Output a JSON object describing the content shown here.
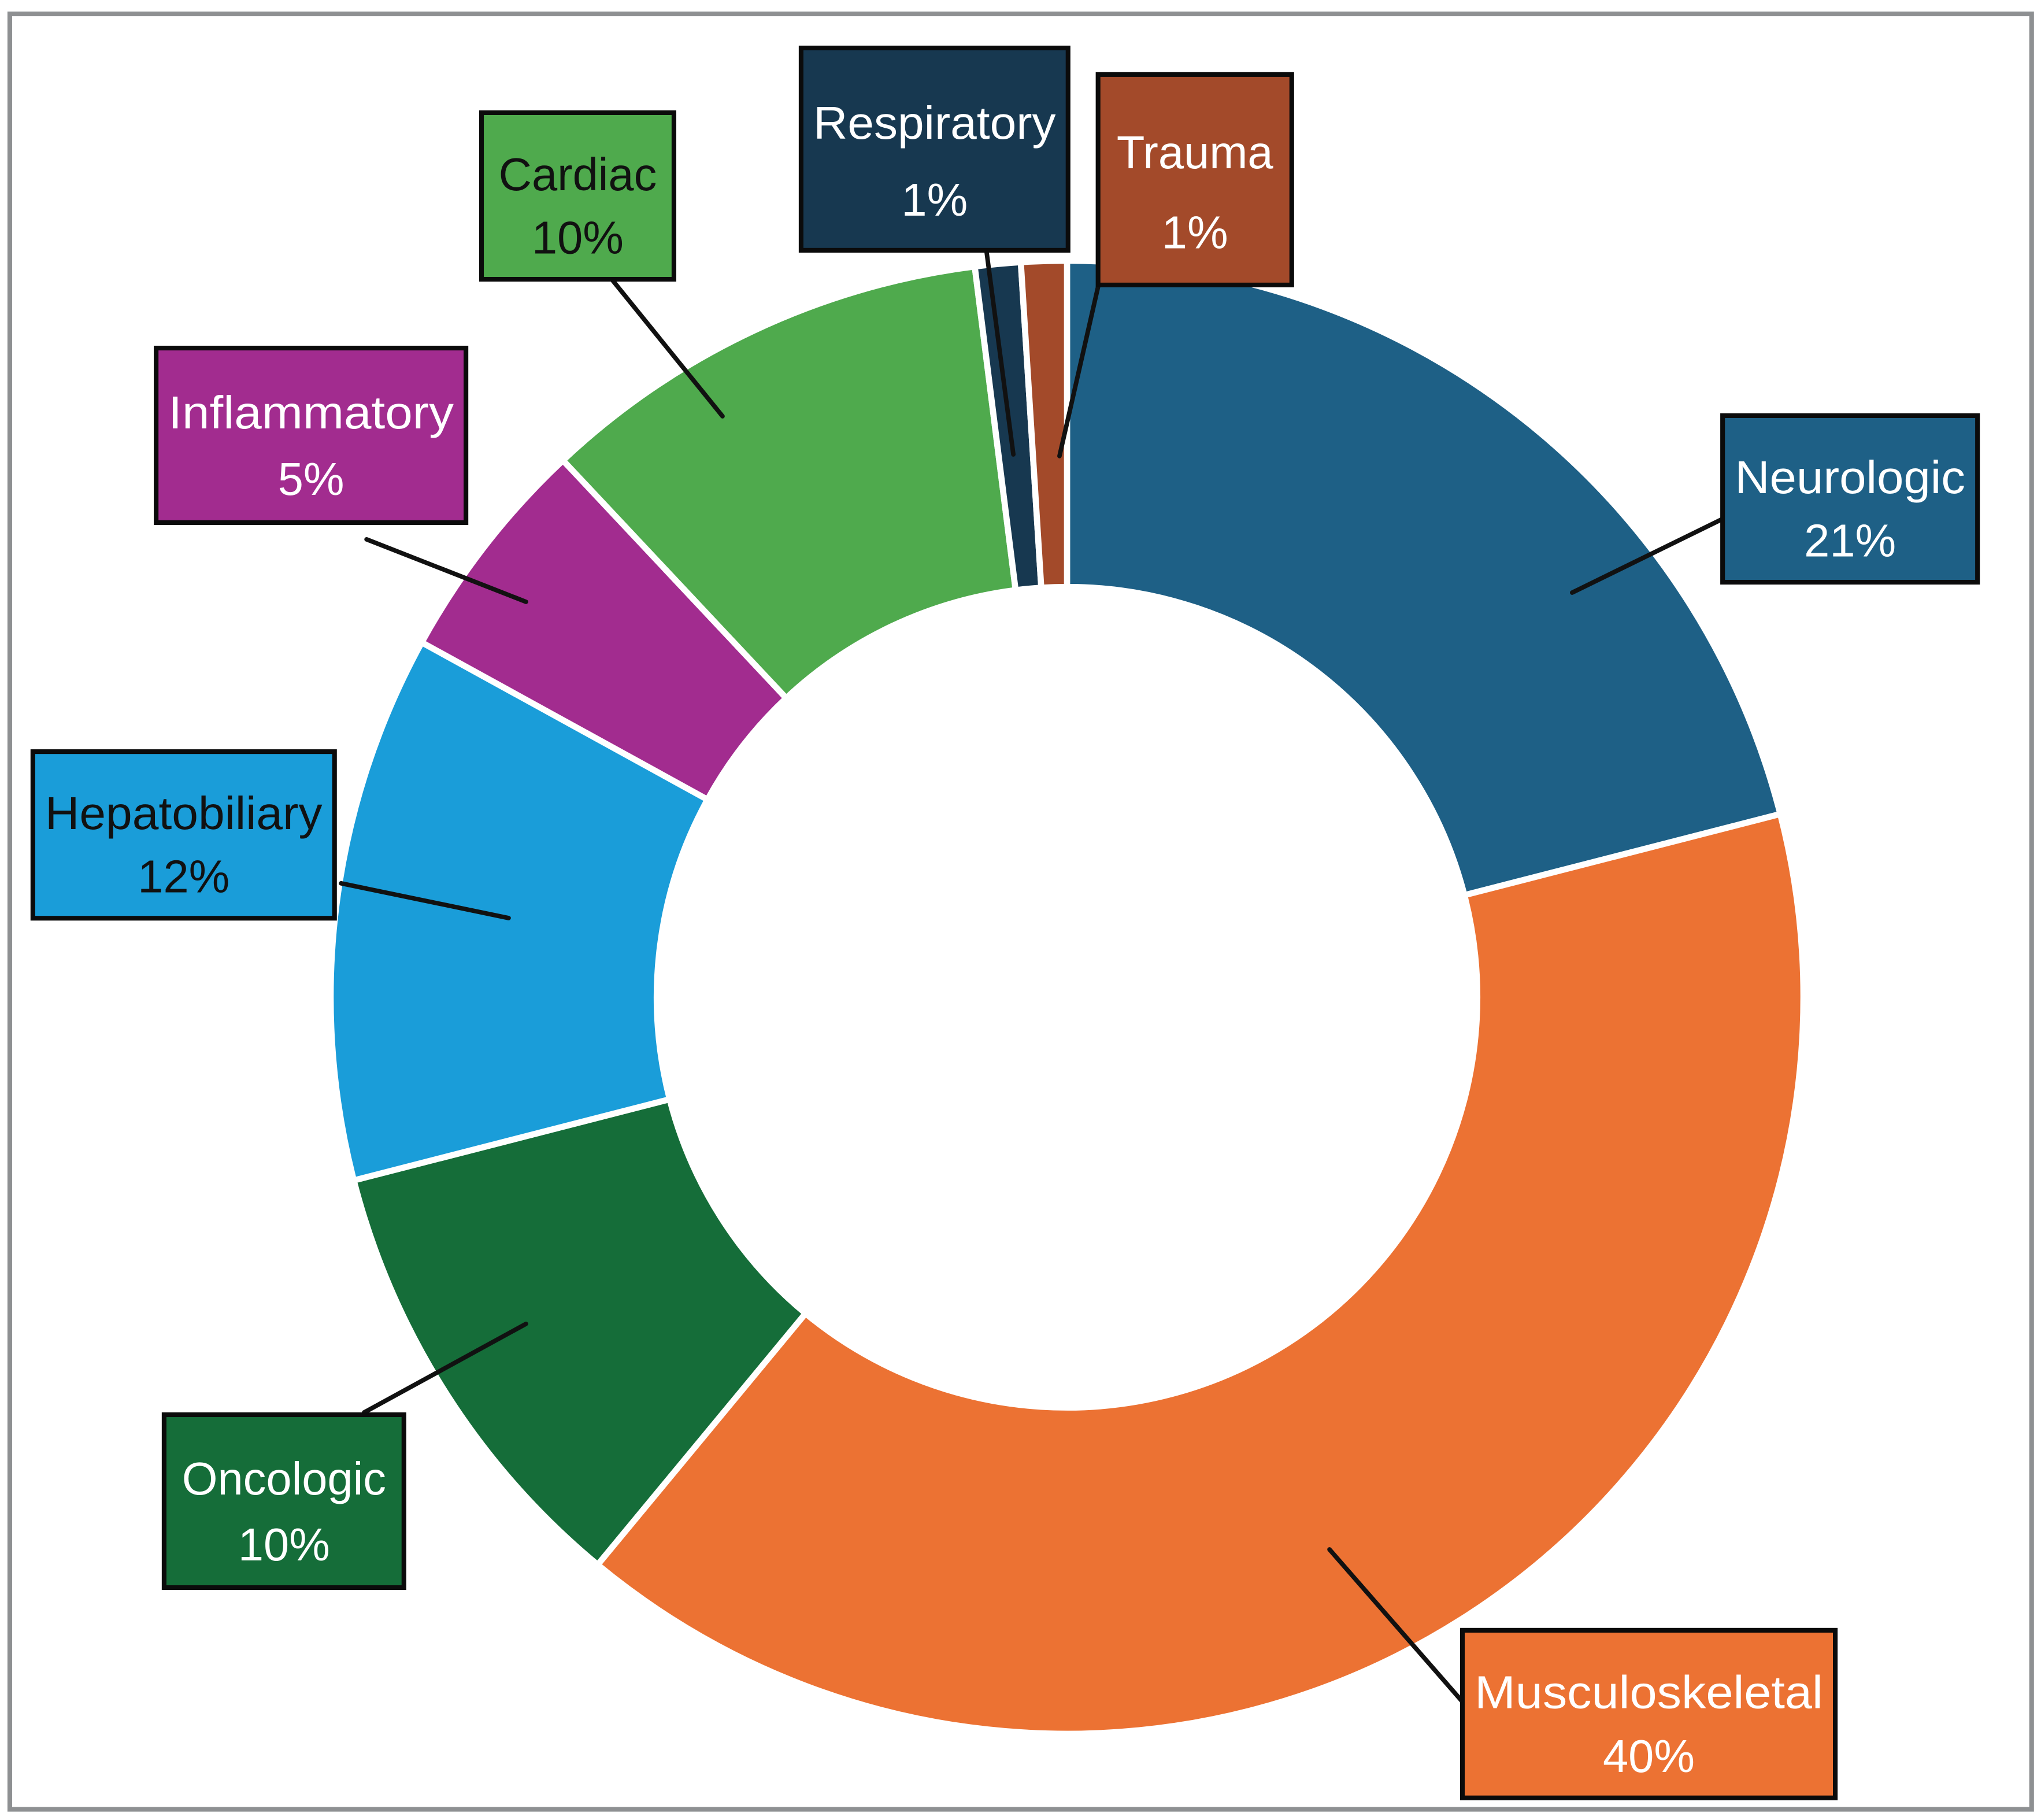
{
  "figure": {
    "background_color": "#FFFFFF",
    "frame_color": "#8E9092",
    "callout_line_color": "#111111",
    "label_border_color": "#0B0B0B"
  },
  "chart_data": {
    "type": "pie",
    "subtype": "donut",
    "title": "",
    "unit": "percent",
    "direction": "clockwise",
    "start_angle_deg": 0,
    "inner_radius_ratio": 0.557,
    "legend_position": "callout-labels-around-ring",
    "grid": false,
    "total": 100,
    "segments": [
      {
        "label": "Neurologic",
        "value": 21,
        "display": "21%",
        "color": "#1E6086",
        "text_color": "#FFFFFF"
      },
      {
        "label": "Musculoskeletal",
        "value": 40,
        "display": "40%",
        "color": "#EC7233",
        "text_color": "#FFFFFF"
      },
      {
        "label": "Oncologic",
        "value": 10,
        "display": "10%",
        "color": "#156D39",
        "text_color": "#FFFFFF"
      },
      {
        "label": "Hepatobiliary",
        "value": 12,
        "display": "12%",
        "color": "#1A9DD9",
        "text_color": "#111111"
      },
      {
        "label": "Inflammatory",
        "value": 5,
        "display": "5%",
        "color": "#A22C8F",
        "text_color": "#FFFFFF"
      },
      {
        "label": "Cardiac",
        "value": 10,
        "display": "10%",
        "color": "#4FAA4D",
        "text_color": "#111111"
      },
      {
        "label": "Respiratory",
        "value": 1,
        "display": "1%",
        "color": "#173850",
        "text_color": "#FFFFFF"
      },
      {
        "label": "Trauma",
        "value": 1,
        "display": "1%",
        "color": "#A34A2A",
        "text_color": "#FFFFFF"
      }
    ]
  }
}
